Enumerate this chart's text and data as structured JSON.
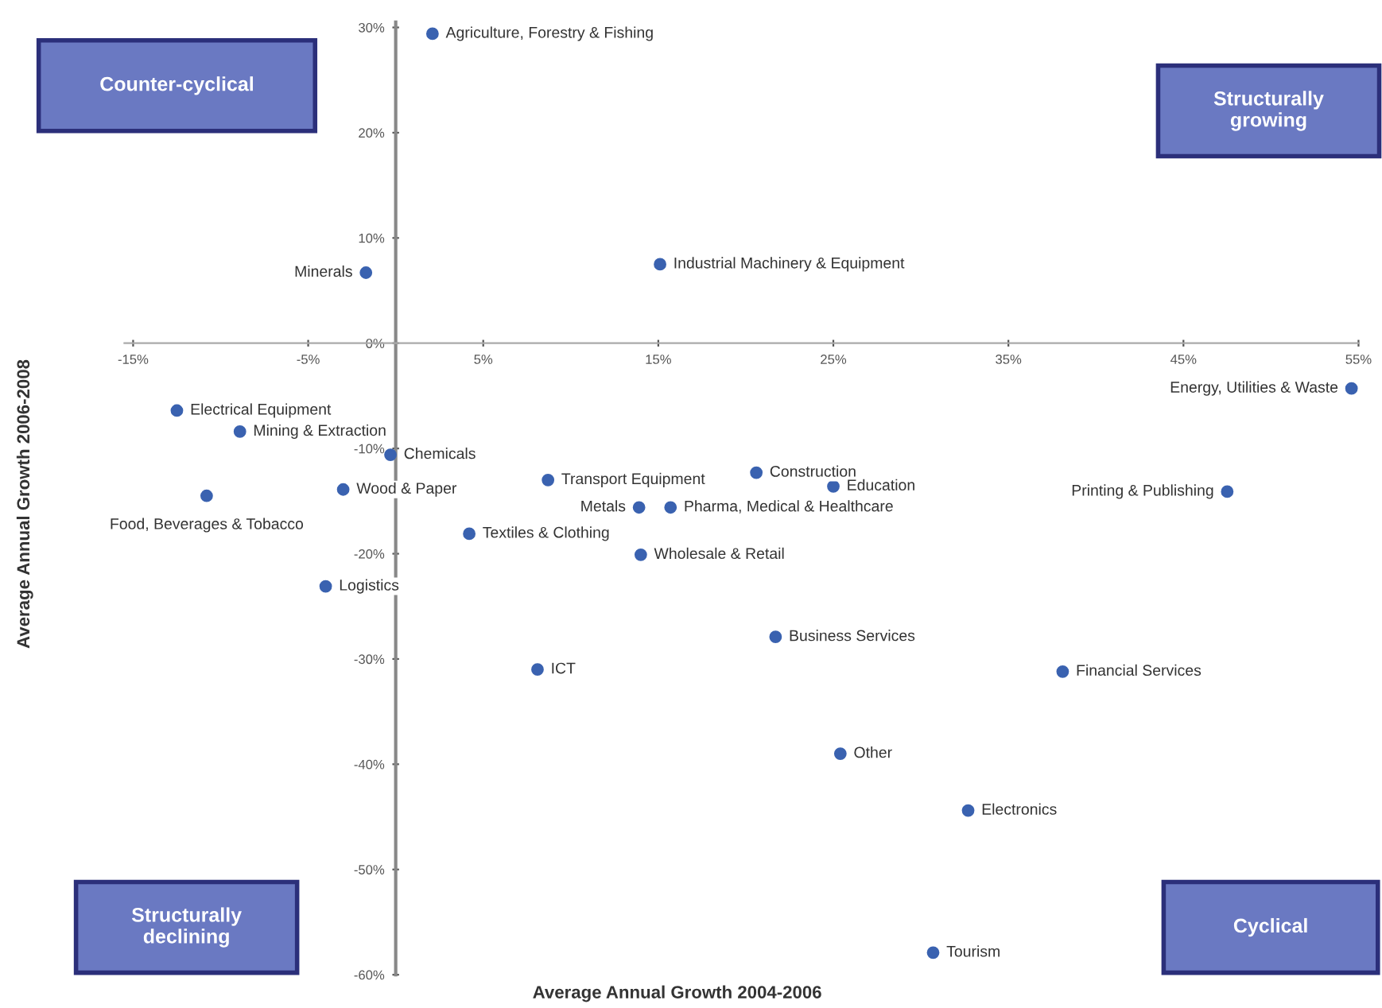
{
  "chart_data": {
    "type": "scatter",
    "xlabel": "Average Annual Growth 2004-2006",
    "ylabel": "Average Annual Growth 2006-2008",
    "xlim": [
      -15.5,
      55
    ],
    "ylim": [
      -60,
      30.5
    ],
    "xticks": [
      {
        "value": -15,
        "label": "-15%"
      },
      {
        "value": -5,
        "label": "-5%"
      },
      {
        "value": 5,
        "label": "5%"
      },
      {
        "value": 15,
        "label": "15%"
      },
      {
        "value": 25,
        "label": "25%"
      },
      {
        "value": 35,
        "label": "35%"
      },
      {
        "value": 45,
        "label": "45%"
      },
      {
        "value": 55,
        "label": "55%"
      }
    ],
    "yticks": [
      {
        "value": -60,
        "label": "-60%"
      },
      {
        "value": -50,
        "label": "-50%"
      },
      {
        "value": -40,
        "label": "-40%"
      },
      {
        "value": -30,
        "label": "-30%"
      },
      {
        "value": -20,
        "label": "-20%"
      },
      {
        "value": -10,
        "label": "-10%"
      },
      {
        "value": 0,
        "label": "0%"
      },
      {
        "value": 10,
        "label": "10%"
      },
      {
        "value": 20,
        "label": "20%"
      },
      {
        "value": 30,
        "label": "30%"
      }
    ],
    "marker": "circle",
    "grid": false,
    "legend": false,
    "series": [
      {
        "color": "#3a62b0",
        "x": [
          2.1,
          -1.7,
          15.1,
          54.6,
          -12.5,
          -8.9,
          -0.3,
          -10.8,
          -3.0,
          8.7,
          13.9,
          15.7,
          4.2,
          14.0,
          -4.0,
          8.1,
          20.6,
          25.0,
          47.5,
          21.7,
          38.1,
          25.4,
          32.7,
          30.7
        ],
        "values": [
          29.4,
          6.7,
          7.5,
          -4.3,
          -6.4,
          -8.4,
          -10.6,
          -14.5,
          -13.9,
          -13.0,
          -15.6,
          -15.6,
          -18.1,
          -20.1,
          -23.1,
          -31.0,
          -12.3,
          -13.6,
          -14.1,
          -27.9,
          -31.2,
          -39.0,
          -44.4,
          -57.9
        ]
      }
    ],
    "annotations": [
      {
        "text": "Agriculture, Forestry & Fishing",
        "x": 2.1,
        "y": 29.4
      },
      {
        "text": "Minerals",
        "x": -1.7,
        "y": 6.7
      },
      {
        "text": "Industrial Machinery & Equipment",
        "x": 15.1,
        "y": 7.5
      },
      {
        "text": "Energy, Utilities & Waste",
        "x": 54.6,
        "y": -4.3
      },
      {
        "text": "Electrical Equipment",
        "x": -12.5,
        "y": -6.4
      },
      {
        "text": "Mining & Extraction",
        "x": -8.9,
        "y": -8.4
      },
      {
        "text": "Chemicals",
        "x": -0.3,
        "y": -10.6
      },
      {
        "text": "Food, Beverages & Tobacco",
        "x": -10.8,
        "y": -14.5
      },
      {
        "text": "Wood & Paper",
        "x": -3.0,
        "y": -13.9
      },
      {
        "text": "Transport Equipment",
        "x": 8.7,
        "y": -13.0
      },
      {
        "text": "Metals",
        "x": 13.9,
        "y": -15.6
      },
      {
        "text": "Pharma, Medical & Healthcare",
        "x": 15.7,
        "y": -15.6
      },
      {
        "text": "Textiles & Clothing",
        "x": 4.2,
        "y": -18.1
      },
      {
        "text": "Wholesale & Retail",
        "x": 14.0,
        "y": -20.1
      },
      {
        "text": "Logistics",
        "x": -4.0,
        "y": -23.1
      },
      {
        "text": "ICT",
        "x": 8.1,
        "y": -31.0
      },
      {
        "text": "Construction",
        "x": 20.6,
        "y": -12.3
      },
      {
        "text": "Education",
        "x": 25.0,
        "y": -13.6
      },
      {
        "text": "Printing & Publishing",
        "x": 47.5,
        "y": -14.1
      },
      {
        "text": "Business Services",
        "x": 21.7,
        "y": -27.9
      },
      {
        "text": "Financial Services",
        "x": 38.1,
        "y": -31.2
      },
      {
        "text": "Other",
        "x": 25.4,
        "y": -39.0
      },
      {
        "text": "Electronics",
        "x": 32.7,
        "y": -44.4
      },
      {
        "text": "Tourism",
        "x": 30.7,
        "y": -57.9
      },
      "Counter-cyclical",
      "Structurally growing",
      "Structurally declining",
      "Cyclical"
    ]
  }
}
